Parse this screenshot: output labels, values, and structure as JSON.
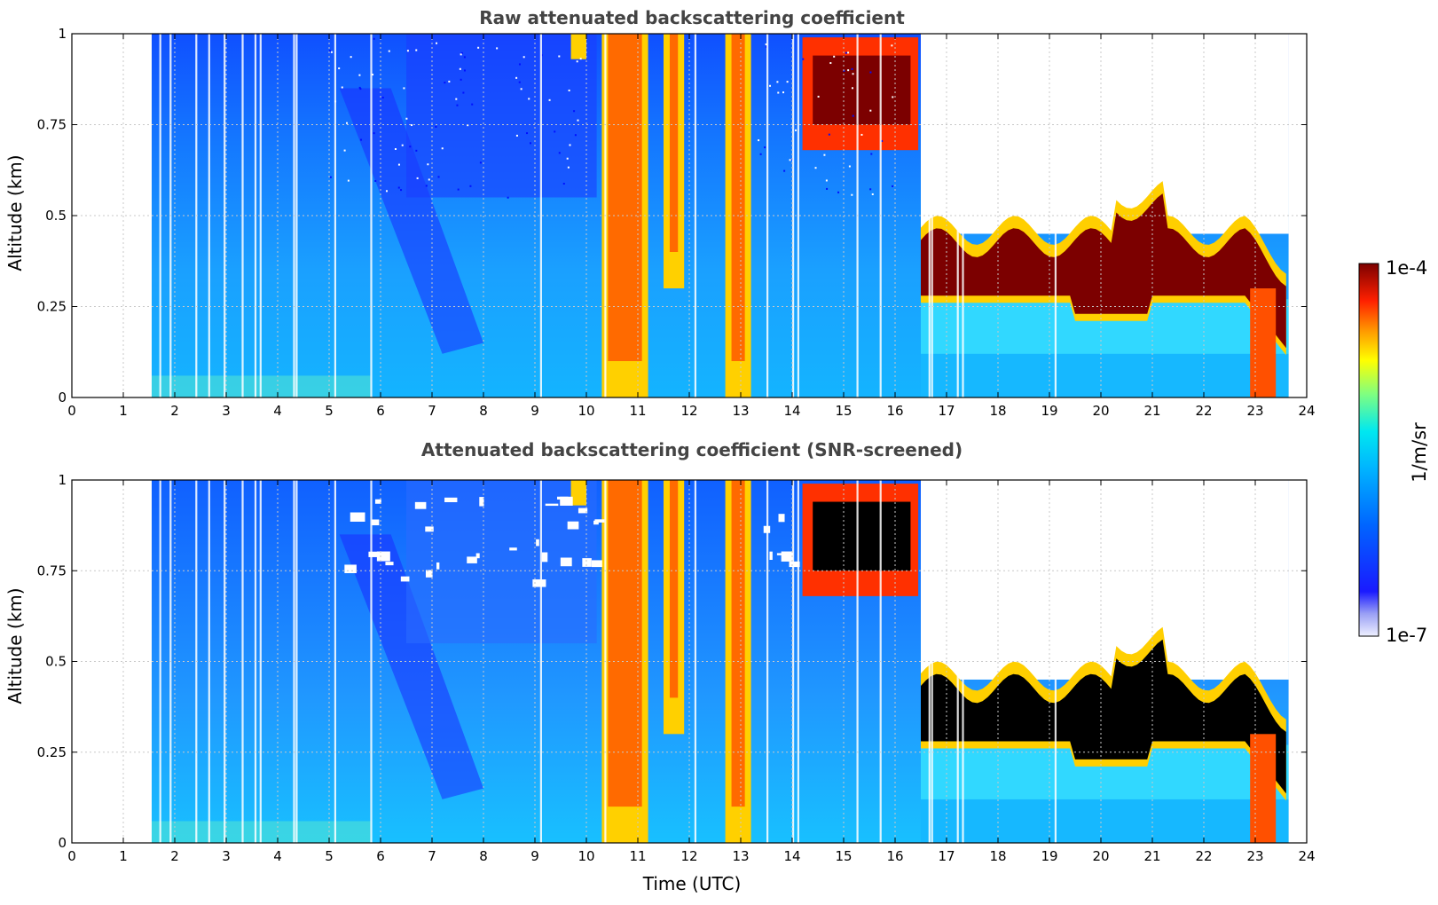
{
  "colors": {
    "jet": [
      "#eef0ff",
      "#d9dcfb",
      "#b6bbf6",
      "#7e83f3",
      "#1a1aff",
      "#0055ff",
      "#00a6ff",
      "#00e5ff",
      "#7dff7a",
      "#ffff00",
      "#ffb000",
      "#ff4a00",
      "#d60000",
      "#7c0000"
    ],
    "saturated_mask": "#000000",
    "grid": "#c8c8c8"
  },
  "colorbar": {
    "label": "1/m/sr",
    "max_label": "1e-4",
    "min_label": "1e-7",
    "scale": "log"
  },
  "chart_data": [
    {
      "type": "heatmap",
      "title": "Raw attenuated backscattering coefficient",
      "xlabel": "",
      "ylabel": "Altitude (km)",
      "xlim": [
        0,
        24
      ],
      "ylim": [
        0,
        1
      ],
      "xticks": [
        "0",
        "1",
        "2",
        "3",
        "4",
        "5",
        "6",
        "7",
        "8",
        "9",
        "10",
        "11",
        "12",
        "13",
        "14",
        "15",
        "16",
        "17",
        "18",
        "19",
        "20",
        "21",
        "22",
        "23",
        "24"
      ],
      "yticks": [
        "0",
        "0.25",
        "0.5",
        "0.75",
        "1"
      ],
      "grid": true,
      "data_start_utc": 1.55,
      "data_end_utc": 23.65,
      "features": [
        {
          "name": "boundary layer aerosol",
          "t": [
            1.55,
            16.5
          ],
          "alt": [
            0,
            0.35
          ],
          "level": "moderate"
        },
        {
          "name": "rain shaft 1",
          "t": [
            10.3,
            11.2
          ],
          "alt": [
            0,
            1
          ],
          "level": "high"
        },
        {
          "name": "rain shaft 2",
          "t": [
            11.5,
            11.9
          ],
          "alt": [
            0.3,
            1
          ],
          "level": "high"
        },
        {
          "name": "rain shaft 3",
          "t": [
            12.7,
            13.2
          ],
          "alt": [
            0,
            1
          ],
          "level": "high"
        },
        {
          "name": "low cloud layer",
          "t": [
            14.2,
            16.4
          ],
          "alt": [
            0.72,
            0.98
          ],
          "level": "saturated"
        },
        {
          "name": "stratocumulus deck",
          "t": [
            16.5,
            23.6
          ],
          "alt": [
            0.22,
            0.45
          ],
          "level": "saturated"
        },
        {
          "name": "surface fog",
          "t": [
            22.9,
            23.4
          ],
          "alt": [
            0,
            0.3
          ],
          "level": "high"
        }
      ]
    },
    {
      "type": "heatmap",
      "title": "Attenuated backscattering coefficient (SNR-screened)",
      "xlabel": "Time (UTC)",
      "ylabel": "Altitude (km)",
      "xlim": [
        0,
        24
      ],
      "ylim": [
        0,
        1
      ],
      "xticks": [
        "0",
        "1",
        "2",
        "3",
        "4",
        "5",
        "6",
        "7",
        "8",
        "9",
        "10",
        "11",
        "12",
        "13",
        "14",
        "15",
        "16",
        "17",
        "18",
        "19",
        "20",
        "21",
        "22",
        "23",
        "24"
      ],
      "yticks": [
        "0",
        "0.25",
        "0.5",
        "0.75",
        "1"
      ],
      "grid": true,
      "data_start_utc": 1.55,
      "data_end_utc": 23.65,
      "screened": "low-SNR pixels removed (white); saturated cloud shown black"
    }
  ]
}
